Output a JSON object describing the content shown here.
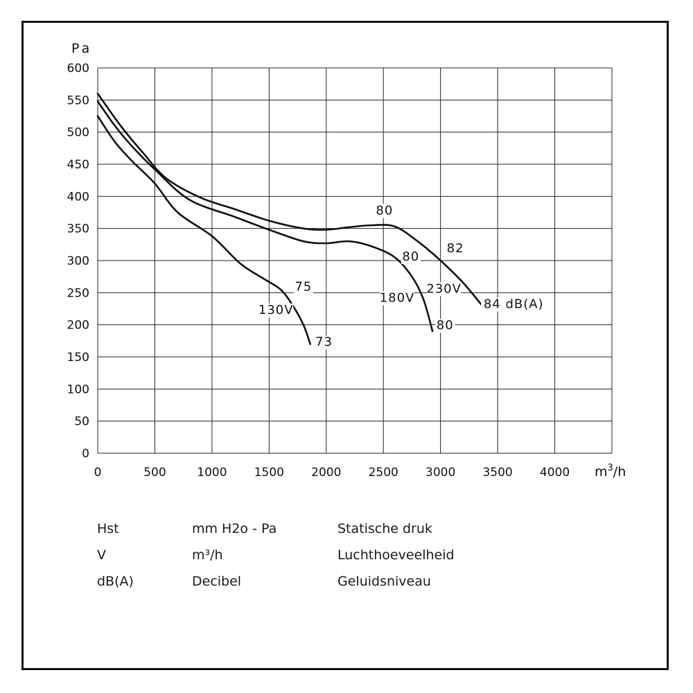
{
  "chart_data": {
    "type": "line",
    "ylabel": "Pa",
    "xlabel": "m³/h",
    "xlim": [
      0,
      4500
    ],
    "ylim": [
      0,
      600
    ],
    "x_ticks": [
      "0",
      "500",
      "1000",
      "1500",
      "2000",
      "2500",
      "3000",
      "3500",
      "4000"
    ],
    "y_ticks": [
      "0",
      "50",
      "100",
      "150",
      "200",
      "250",
      "300",
      "350",
      "400",
      "450",
      "500",
      "550",
      "600"
    ],
    "grid": true,
    "series": [
      {
        "name": "130V",
        "points": [
          [
            0,
            525
          ],
          [
            150,
            485
          ],
          [
            300,
            455
          ],
          [
            500,
            420
          ],
          [
            700,
            375
          ],
          [
            1000,
            338
          ],
          [
            1250,
            295
          ],
          [
            1450,
            272
          ],
          [
            1600,
            255
          ],
          [
            1700,
            232
          ],
          [
            1800,
            200
          ],
          [
            1860,
            170
          ]
        ]
      },
      {
        "name": "180V",
        "points": [
          [
            0,
            548
          ],
          [
            150,
            510
          ],
          [
            300,
            478
          ],
          [
            500,
            442
          ],
          [
            800,
            395
          ],
          [
            1200,
            368
          ],
          [
            1500,
            348
          ],
          [
            1800,
            330
          ],
          [
            2000,
            327
          ],
          [
            2200,
            330
          ],
          [
            2400,
            322
          ],
          [
            2600,
            305
          ],
          [
            2750,
            275
          ],
          [
            2850,
            240
          ],
          [
            2930,
            190
          ]
        ]
      },
      {
        "name": "230V",
        "points": [
          [
            0,
            560
          ],
          [
            200,
            510
          ],
          [
            400,
            467
          ],
          [
            600,
            428
          ],
          [
            900,
            398
          ],
          [
            1200,
            380
          ],
          [
            1500,
            362
          ],
          [
            1800,
            350
          ],
          [
            2000,
            348
          ],
          [
            2200,
            352
          ],
          [
            2400,
            355
          ],
          [
            2600,
            353
          ],
          [
            2800,
            330
          ],
          [
            3000,
            300
          ],
          [
            3200,
            265
          ],
          [
            3400,
            222
          ]
        ]
      }
    ],
    "annotations": [
      {
        "text": "75",
        "x": 1800,
        "y": 253
      },
      {
        "text": "130V",
        "x": 1560,
        "y": 217
      },
      {
        "text": "73",
        "x": 1980,
        "y": 167
      },
      {
        "text": "80",
        "x": 2510,
        "y": 372
      },
      {
        "text": "80",
        "x": 2740,
        "y": 300
      },
      {
        "text": "180V",
        "x": 2620,
        "y": 236
      },
      {
        "text": "230V",
        "x": 3030,
        "y": 250
      },
      {
        "text": "80",
        "x": 3040,
        "y": 193
      },
      {
        "text": "82",
        "x": 3130,
        "y": 313
      },
      {
        "text": "84 dB(A)",
        "x": 3640,
        "y": 226
      }
    ]
  },
  "legend": {
    "rows": [
      {
        "symbol": "Hst",
        "unit": "mm H2o - Pa",
        "description": "Statische druk"
      },
      {
        "symbol": "V",
        "unit": "m³/h",
        "description": "Luchthoeveelheid"
      },
      {
        "symbol": "dB(A)",
        "unit": "Decibel",
        "description": "Geluidsniveau"
      }
    ]
  }
}
